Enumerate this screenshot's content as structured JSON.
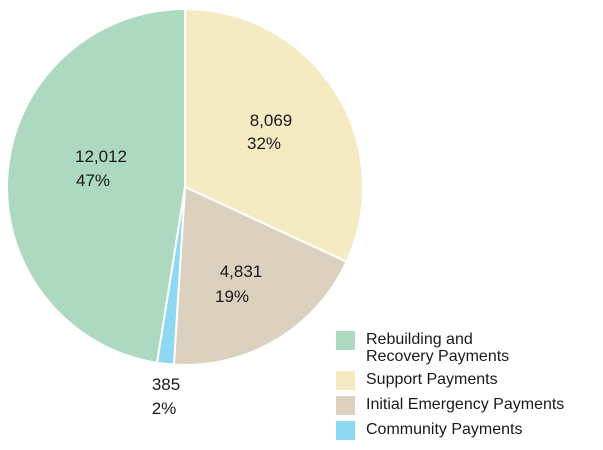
{
  "chart_data": {
    "type": "pie",
    "slices": [
      {
        "name": "Support Payments",
        "value": 8069,
        "percent": "32%",
        "value_label": "8,069",
        "color": "#f5ebc3"
      },
      {
        "name": "Initial Emergency Payments",
        "value": 4831,
        "percent": "19%",
        "value_label": "4,831",
        "color": "#dcd1bf"
      },
      {
        "name": "Community Payments",
        "value": 385,
        "percent": "2%",
        "value_label": "385",
        "color": "#8fd8f1"
      },
      {
        "name": "Rebuilding and Recovery Payments",
        "value": 12012,
        "percent": "47%",
        "value_label": "12,012",
        "color": "#acd9bf"
      }
    ],
    "legend": {
      "placement": "bottom-right",
      "items": [
        {
          "label_line1": "Rebuilding and",
          "label_line2": "Recovery Payments",
          "color": "#acd9bf"
        },
        {
          "label_line1": "Support Payments",
          "color": "#f5ebc3"
        },
        {
          "label_line1": "Initial Emergency Payments",
          "color": "#dcd1bf"
        },
        {
          "label_line1": "Community Payments",
          "color": "#8fd8f1"
        }
      ]
    }
  }
}
